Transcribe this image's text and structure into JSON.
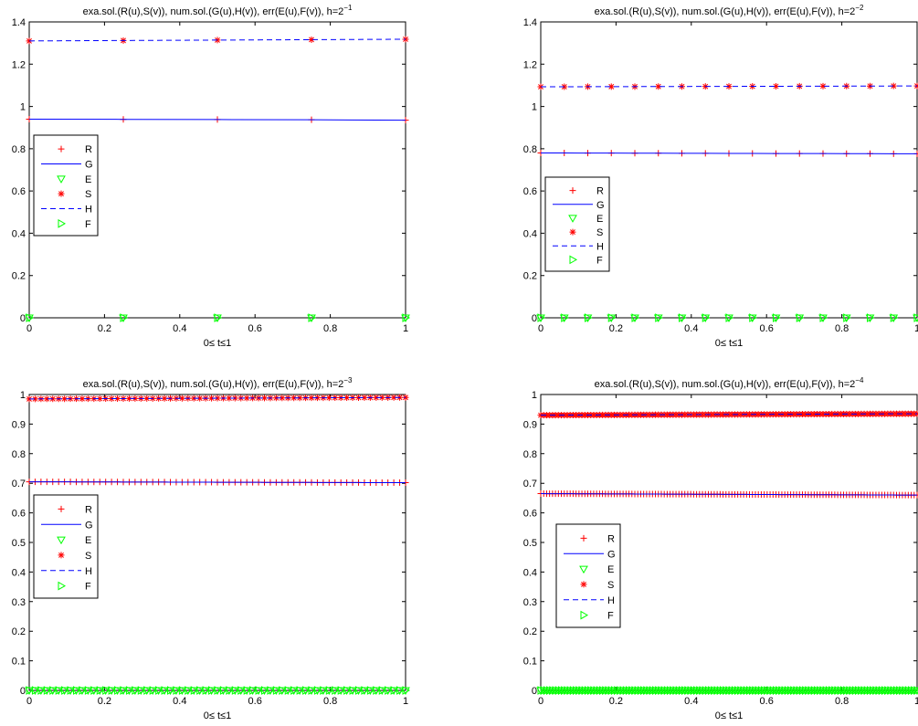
{
  "chart_data": [
    {
      "type": "line",
      "title_prefix": "exa.sol.(R(u),S(v)), num.sol.(G(u),H(v)), err(E(u),F(v)), h=2",
      "title_exp": "−1",
      "xlabel": "0≤ t≤1",
      "xlim": [
        0,
        1
      ],
      "ylim": [
        0,
        1.4
      ],
      "xticks": [
        "0",
        "0.2",
        "0.4",
        "0.6",
        "0.8",
        "1"
      ],
      "yticks": [
        "0",
        "0.2",
        "0.4",
        "0.6",
        "0.8",
        "1",
        "1.2",
        "1.4"
      ],
      "x": [
        0,
        0.25,
        0.5,
        0.75,
        1
      ],
      "series": [
        {
          "name": "R",
          "marker": "+",
          "color": "#ff0000",
          "values": [
            0.94,
            0.939,
            0.938,
            0.937,
            0.935
          ]
        },
        {
          "name": "G",
          "line": "solid",
          "color": "#0000ff",
          "values": [
            0.94,
            0.939,
            0.938,
            0.937,
            0.935
          ]
        },
        {
          "name": "E",
          "marker": "triangle-down",
          "color": "#00ff00",
          "values": [
            0,
            0,
            0,
            0,
            0
          ]
        },
        {
          "name": "S",
          "marker": "*",
          "color": "#ff0000",
          "values": [
            1.31,
            1.312,
            1.314,
            1.316,
            1.318
          ]
        },
        {
          "name": "H",
          "line": "dashed",
          "color": "#0000ff",
          "values": [
            1.31,
            1.312,
            1.314,
            1.316,
            1.318
          ]
        },
        {
          "name": "F",
          "marker": "triangle-right",
          "color": "#00ff00",
          "values": [
            0,
            0,
            0,
            0,
            0
          ]
        }
      ],
      "legend": "left"
    },
    {
      "type": "line",
      "title_prefix": "exa.sol.(R(u),S(v)), num.sol.(G(u),H(v)), err(E(u),F(v)), h=2",
      "title_exp": "−2",
      "xlabel": "0≤ t≤1",
      "xlim": [
        0,
        1
      ],
      "ylim": [
        0,
        1.4
      ],
      "xticks": [
        "0",
        "0.2",
        "0.4",
        "0.6",
        "0.8",
        "1"
      ],
      "yticks": [
        "0",
        "0.2",
        "0.4",
        "0.6",
        "0.8",
        "1",
        "1.2",
        "1.4"
      ],
      "x_count": 17,
      "series": [
        {
          "name": "R",
          "marker": "+",
          "color": "#ff0000",
          "start": 0.78,
          "end": 0.776
        },
        {
          "name": "G",
          "line": "solid",
          "color": "#0000ff",
          "start": 0.78,
          "end": 0.776
        },
        {
          "name": "E",
          "marker": "triangle-down",
          "color": "#00ff00",
          "start": 0,
          "end": 0
        },
        {
          "name": "S",
          "marker": "*",
          "color": "#ff0000",
          "start": 1.093,
          "end": 1.097
        },
        {
          "name": "H",
          "line": "dashed",
          "color": "#0000ff",
          "start": 1.093,
          "end": 1.097
        },
        {
          "name": "F",
          "marker": "triangle-right",
          "color": "#00ff00",
          "start": 0,
          "end": 0
        }
      ],
      "legend": "left"
    },
    {
      "type": "line",
      "title_prefix": "exa.sol.(R(u),S(v)), num.sol.(G(u),H(v)), err(E(u),F(v)), h=2",
      "title_exp": "−3",
      "xlabel": "0≤ t≤1",
      "xlim": [
        0,
        1
      ],
      "ylim": [
        0,
        1
      ],
      "xticks": [
        "0",
        "0.2",
        "0.4",
        "0.6",
        "0.8",
        "1"
      ],
      "yticks": [
        "0",
        "0.1",
        "0.2",
        "0.3",
        "0.4",
        "0.5",
        "0.6",
        "0.7",
        "0.8",
        "0.9",
        "1"
      ],
      "x_count": 65,
      "series": [
        {
          "name": "R",
          "marker": "+",
          "color": "#ff0000",
          "start": 0.705,
          "end": 0.702
        },
        {
          "name": "G",
          "line": "solid",
          "color": "#0000ff",
          "start": 0.705,
          "end": 0.702
        },
        {
          "name": "E",
          "marker": "triangle-down",
          "color": "#00ff00",
          "start": 0,
          "end": 0
        },
        {
          "name": "S",
          "marker": "*",
          "color": "#ff0000",
          "start": 0.985,
          "end": 0.99
        },
        {
          "name": "H",
          "line": "dashed",
          "color": "#0000ff",
          "start": 0.985,
          "end": 0.99
        },
        {
          "name": "F",
          "marker": "triangle-right",
          "color": "#00ff00",
          "start": 0,
          "end": 0
        }
      ],
      "legend": "left"
    },
    {
      "type": "line",
      "title_prefix": "exa.sol.(R(u),S(v)), num.sol.(G(u),H(v)), err(E(u),F(v)), h=2",
      "title_exp": "−4",
      "xlabel": "0≤ t≤1",
      "xlim": [
        0,
        1
      ],
      "ylim": [
        0,
        1
      ],
      "xticks": [
        "0",
        "0.2",
        "0.4",
        "0.6",
        "0.8",
        "1"
      ],
      "yticks": [
        "0",
        "0.1",
        "0.2",
        "0.3",
        "0.4",
        "0.5",
        "0.6",
        "0.7",
        "0.8",
        "0.9",
        "1"
      ],
      "x_count": 129,
      "series": [
        {
          "name": "R",
          "marker": "+",
          "color": "#ff0000",
          "start": 0.665,
          "end": 0.66
        },
        {
          "name": "G",
          "line": "solid",
          "color": "#0000ff",
          "start": 0.665,
          "end": 0.66
        },
        {
          "name": "E",
          "marker": "triangle-down",
          "color": "#00ff00",
          "start": 0,
          "end": 0
        },
        {
          "name": "S",
          "marker": "*",
          "color": "#ff0000",
          "start": 0.93,
          "end": 0.935
        },
        {
          "name": "H",
          "line": "dashed",
          "color": "#0000ff",
          "start": 0.93,
          "end": 0.935
        },
        {
          "name": "F",
          "marker": "triangle-right",
          "color": "#00ff00",
          "start": 0,
          "end": 0
        }
      ],
      "legend": "left"
    }
  ]
}
